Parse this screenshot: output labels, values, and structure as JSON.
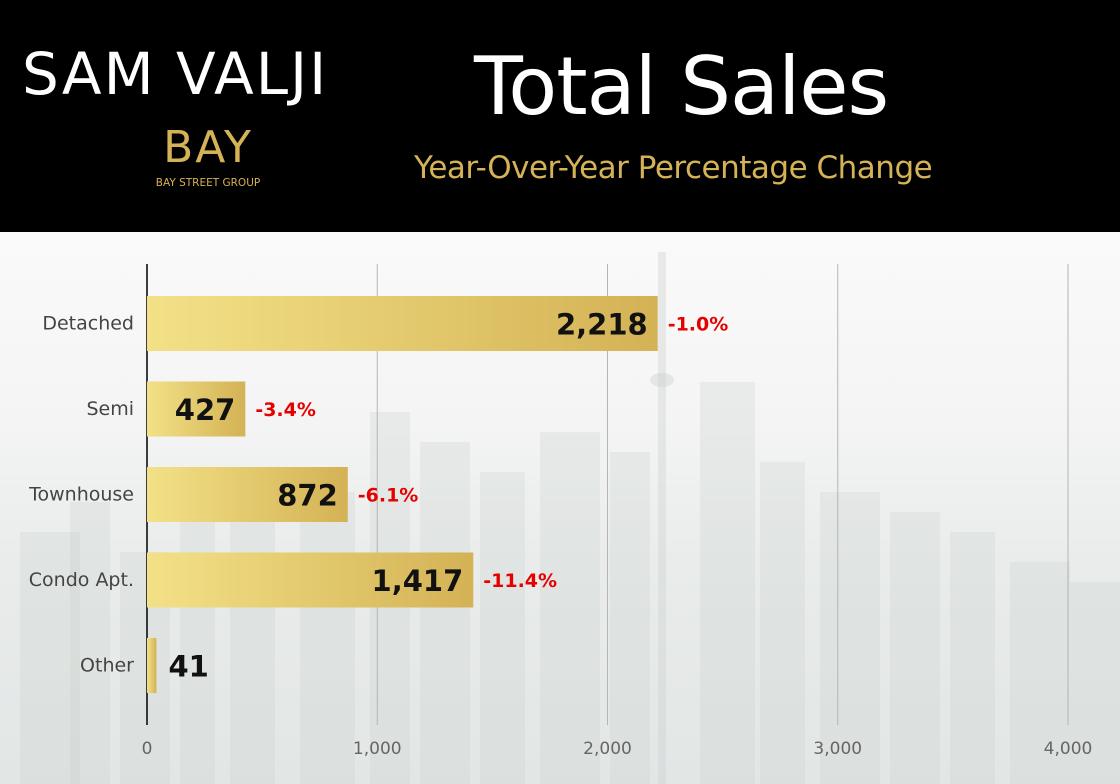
{
  "header": {
    "brand_name": "SAM VALJI",
    "logo_text": "BAY",
    "logo_subtext": "BAY STREET GROUP",
    "title": "Total Sales",
    "subtitle": "Year-Over-Year Percentage Change"
  },
  "colors": {
    "header_bg": "#000000",
    "gold": "#d4b255",
    "gold_light": "#f3e187",
    "change_negative": "#e60000",
    "value_text": "#111111",
    "label_text": "#444444"
  },
  "chart_data": {
    "type": "bar",
    "orientation": "horizontal",
    "title": "Total Sales",
    "subtitle": "Year-Over-Year Percentage Change",
    "categories": [
      "Detached",
      "Semi",
      "Townhouse",
      "Condo Apt.",
      "Other"
    ],
    "values": [
      2218,
      427,
      872,
      1417,
      41
    ],
    "value_labels": [
      "2,218",
      "427",
      "872",
      "1,417",
      "41"
    ],
    "change_labels": [
      "-1.0%",
      "-3.4%",
      "-6.1%",
      "-11.4%",
      ""
    ],
    "x_ticks": [
      0,
      1000,
      2000,
      3000,
      4000
    ],
    "x_tick_labels": [
      "0",
      "1,000",
      "2,000",
      "3,000",
      "4,000"
    ],
    "xlim": [
      0,
      4000
    ],
    "grid": true
  }
}
